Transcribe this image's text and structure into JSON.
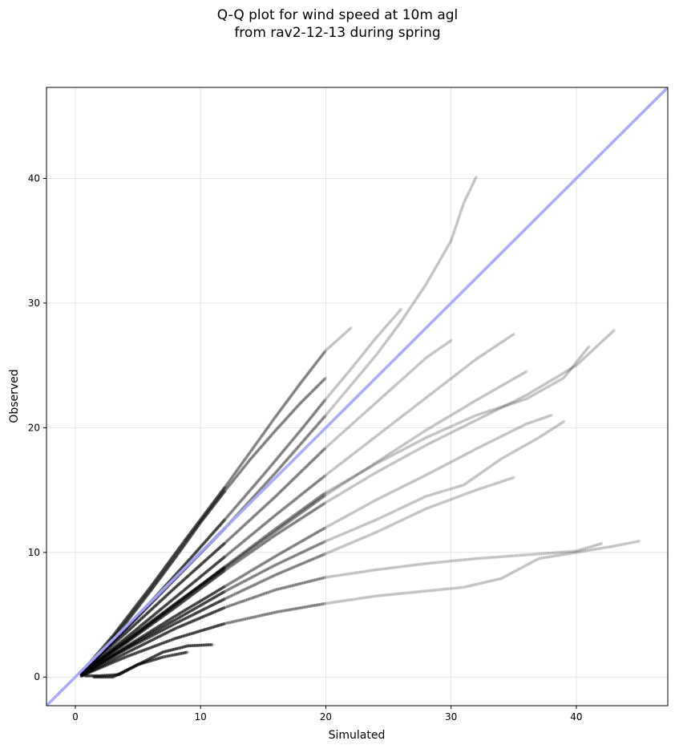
{
  "chart_data": {
    "type": "scatter",
    "title": "Q-Q plot for wind speed at 10m agl",
    "subtitle": "from rav2-12-13 during spring",
    "xlabel": "Simulated",
    "ylabel": "Observed",
    "xlim": [
      -2.3,
      47.3
    ],
    "ylim": [
      -2.3,
      47.3
    ],
    "xticks": [
      0,
      10,
      20,
      30,
      40
    ],
    "yticks": [
      0,
      10,
      20,
      30,
      40
    ],
    "grid": true,
    "reference_line": {
      "x": [
        -2.3,
        47.3
      ],
      "y": [
        -2.3,
        47.3
      ],
      "color": "#a8a8ff"
    },
    "point_color": "#000000",
    "series": [
      {
        "x": [
          0.5,
          2,
          4,
          6,
          8,
          10,
          12,
          14,
          16,
          18,
          20
        ],
        "y": [
          0.4,
          1.9,
          4.3,
          6.9,
          9.6,
          12.4,
          15.0,
          17.5,
          19.8,
          22.0,
          24.0
        ]
      },
      {
        "x": [
          0.6,
          3,
          6,
          9,
          12,
          14,
          16,
          18,
          20,
          22
        ],
        "y": [
          0.5,
          3.3,
          7.2,
          11.3,
          15.3,
          18.1,
          20.9,
          23.6,
          26.2,
          28.0
        ]
      },
      {
        "x": [
          0.4,
          3,
          6,
          9,
          12,
          15,
          18,
          20,
          22,
          24,
          26
        ],
        "y": [
          0.3,
          2.8,
          6.0,
          9.3,
          12.7,
          16.2,
          19.8,
          22.3,
          24.7,
          27.2,
          29.5
        ]
      },
      {
        "x": [
          0.5,
          4,
          8,
          12,
          16,
          20,
          24,
          26,
          28,
          30,
          31,
          32
        ],
        "y": [
          0.4,
          3.8,
          7.9,
          12.0,
          16.4,
          21.0,
          25.8,
          28.5,
          31.5,
          35.0,
          38.0,
          40.1
        ]
      },
      {
        "x": [
          0.5,
          4,
          8,
          12,
          16,
          20,
          24,
          28,
          30
        ],
        "y": [
          0.4,
          3.5,
          7.2,
          10.8,
          14.5,
          18.4,
          22.0,
          25.6,
          27.0
        ]
      },
      {
        "x": [
          0.5,
          4,
          8,
          12,
          16,
          20,
          24,
          28,
          32,
          35
        ],
        "y": [
          0.3,
          3.1,
          6.4,
          9.7,
          13.0,
          16.2,
          19.3,
          22.4,
          25.5,
          27.5
        ]
      },
      {
        "x": [
          0.5,
          4,
          8,
          12,
          16,
          20,
          24,
          28,
          32,
          36
        ],
        "y": [
          0.3,
          2.9,
          5.9,
          8.8,
          11.7,
          14.6,
          17.2,
          19.8,
          22.2,
          24.5
        ]
      },
      {
        "x": [
          0.5,
          4,
          8,
          12,
          16,
          20,
          24,
          28,
          32,
          36,
          39,
          41
        ],
        "y": [
          0.3,
          2.8,
          5.8,
          8.9,
          11.9,
          14.8,
          17.1,
          19.2,
          21.0,
          22.3,
          24.0,
          26.5
        ]
      },
      {
        "x": [
          0.5,
          4,
          8,
          12,
          16,
          20,
          24,
          28,
          32,
          36,
          40,
          43
        ],
        "y": [
          0.3,
          2.7,
          5.6,
          8.6,
          11.4,
          14.0,
          16.4,
          18.6,
          20.6,
          22.6,
          25.0,
          27.8
        ]
      },
      {
        "x": [
          0.5,
          4,
          8,
          12,
          16,
          20,
          24,
          28,
          32,
          36,
          38
        ],
        "y": [
          0.2,
          2.4,
          4.9,
          7.3,
          9.7,
          12.0,
          14.2,
          16.2,
          18.3,
          20.3,
          21.0
        ]
      },
      {
        "x": [
          0.5,
          4,
          8,
          12,
          16,
          20,
          24,
          28,
          31,
          34,
          37,
          39
        ],
        "y": [
          0.2,
          2.3,
          4.6,
          6.9,
          9.0,
          10.9,
          12.6,
          14.5,
          15.4,
          17.5,
          19.2,
          20.5
        ]
      },
      {
        "x": [
          0.5,
          4,
          8,
          12,
          16,
          20,
          24,
          28,
          32,
          35
        ],
        "y": [
          0.2,
          2.2,
          4.3,
          6.3,
          8.2,
          9.9,
          11.6,
          13.5,
          15.0,
          16.0
        ]
      },
      {
        "x": [
          0.5,
          4,
          8,
          12,
          16,
          20,
          24,
          28,
          32,
          36,
          40,
          42
        ],
        "y": [
          0.1,
          1.9,
          3.9,
          5.6,
          7.0,
          8.0,
          8.6,
          9.1,
          9.5,
          9.8,
          10.1,
          10.7
        ]
      },
      {
        "x": [
          0.5,
          4,
          8,
          12,
          16,
          20,
          24,
          28,
          31,
          34,
          37,
          40,
          43,
          45
        ],
        "y": [
          0.1,
          1.6,
          3.1,
          4.3,
          5.2,
          5.9,
          6.5,
          6.9,
          7.2,
          7.9,
          9.5,
          10.0,
          10.5,
          10.9
        ]
      },
      {
        "x": [
          1.5,
          3,
          5,
          7,
          9,
          11
        ],
        "y": [
          0,
          0,
          1.0,
          2.0,
          2.5,
          2.6
        ]
      },
      {
        "x": [
          0.8,
          2,
          3.5,
          5,
          7,
          9
        ],
        "y": [
          0.1,
          0.1,
          0.2,
          1.0,
          1.6,
          2.0
        ]
      }
    ]
  }
}
